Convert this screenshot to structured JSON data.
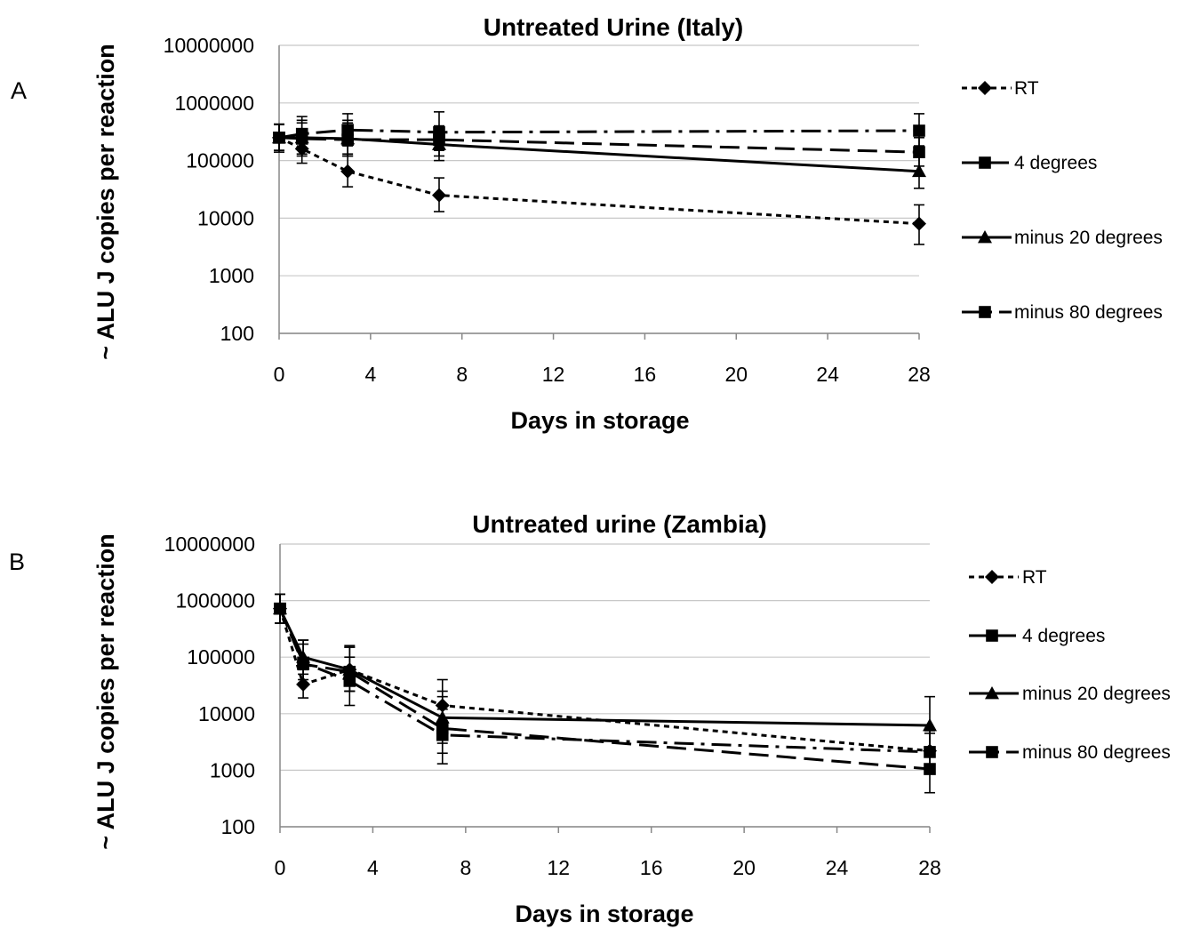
{
  "chart_data": [
    {
      "type": "line",
      "panel_label": "A",
      "title": "Untreated Urine (Italy)",
      "xlabel": "Days in storage",
      "ylabel": "~ ALU J copies per reaction",
      "yscale": "log",
      "xlim": [
        0,
        28
      ],
      "ylim": [
        100,
        10000000
      ],
      "x_ticks": [
        "0",
        "4",
        "8",
        "12",
        "16",
        "20",
        "24",
        "28"
      ],
      "y_ticks": [
        "100",
        "1000",
        "10000",
        "100000",
        "1000000",
        "10000000"
      ],
      "grid": "horizontal",
      "legend_position": "right",
      "series": [
        {
          "name": "RT",
          "marker": "diamond",
          "dash": "short-dash",
          "x": [
            0,
            1,
            3,
            7,
            28
          ],
          "values": [
            250000,
            160000,
            65000,
            25000,
            8000
          ],
          "err_low": [
            140000,
            90000,
            35000,
            13000,
            3500
          ],
          "err_high": [
            430000,
            300000,
            130000,
            50000,
            17000
          ]
        },
        {
          "name": "4 degrees",
          "marker": "square",
          "dash": "long-dash",
          "x": [
            0,
            1,
            3,
            7,
            28
          ],
          "values": [
            250000,
            240000,
            230000,
            230000,
            140000
          ],
          "err_low": [
            150000,
            120000,
            120000,
            120000,
            80000
          ],
          "err_high": [
            420000,
            450000,
            450000,
            400000,
            250000
          ]
        },
        {
          "name": "minus 20 degrees",
          "marker": "triangle",
          "dash": "solid",
          "x": [
            0,
            1,
            3,
            7,
            28
          ],
          "values": [
            250000,
            250000,
            240000,
            190000,
            65000
          ],
          "err_low": [
            150000,
            130000,
            120000,
            100000,
            33000
          ],
          "err_high": [
            420000,
            500000,
            500000,
            350000,
            130000
          ]
        },
        {
          "name": "minus 80 degrees",
          "marker": "square",
          "dash": "dash-dot",
          "x": [
            0,
            1,
            3,
            7,
            28
          ],
          "values": [
            250000,
            290000,
            340000,
            310000,
            330000
          ],
          "err_low": [
            150000,
            160000,
            180000,
            150000,
            180000
          ],
          "err_high": [
            420000,
            580000,
            650000,
            700000,
            650000
          ]
        }
      ]
    },
    {
      "type": "line",
      "panel_label": "B",
      "title": "Untreated urine (Zambia)",
      "xlabel": "Days in storage",
      "ylabel": "~ ALU J copies per reaction",
      "yscale": "log",
      "xlim": [
        0,
        28
      ],
      "ylim": [
        100,
        10000000
      ],
      "x_ticks": [
        "0",
        "4",
        "8",
        "12",
        "16",
        "20",
        "24",
        "28"
      ],
      "y_ticks": [
        "100",
        "1000",
        "10000",
        "100000",
        "1000000",
        "10000000"
      ],
      "grid": "horizontal",
      "legend_position": "right",
      "series": [
        {
          "name": "RT",
          "marker": "diamond",
          "dash": "short-dash",
          "x": [
            0,
            1,
            3,
            7,
            28
          ],
          "values": [
            720000,
            33000,
            60000,
            14000,
            2200
          ],
          "err_low": [
            400000,
            19000,
            25000,
            5000,
            1000
          ],
          "err_high": [
            1300000,
            60000,
            150000,
            40000,
            5000
          ]
        },
        {
          "name": "4 degrees",
          "marker": "square",
          "dash": "long-dash",
          "x": [
            0,
            1,
            3,
            7,
            28
          ],
          "values": [
            720000,
            75000,
            55000,
            5500,
            1050
          ],
          "err_low": [
            400000,
            35000,
            25000,
            2000,
            400
          ],
          "err_high": [
            1300000,
            200000,
            150000,
            20000,
            2500
          ]
        },
        {
          "name": "minus 20 degrees",
          "marker": "triangle",
          "dash": "solid",
          "x": [
            0,
            1,
            3,
            7,
            28
          ],
          "values": [
            720000,
            100000,
            60000,
            8500,
            6200
          ],
          "err_low": [
            400000,
            50000,
            25000,
            3000,
            1800
          ],
          "err_high": [
            1300000,
            200000,
            160000,
            25000,
            20000
          ]
        },
        {
          "name": "minus 80 degrees",
          "marker": "square",
          "dash": "dash-dot",
          "x": [
            0,
            1,
            3,
            7,
            28
          ],
          "values": [
            720000,
            80000,
            38000,
            4200,
            2100
          ],
          "err_low": [
            400000,
            40000,
            14000,
            1300,
            1000
          ],
          "err_high": [
            1300000,
            170000,
            100000,
            12000,
            4500
          ]
        }
      ]
    }
  ]
}
